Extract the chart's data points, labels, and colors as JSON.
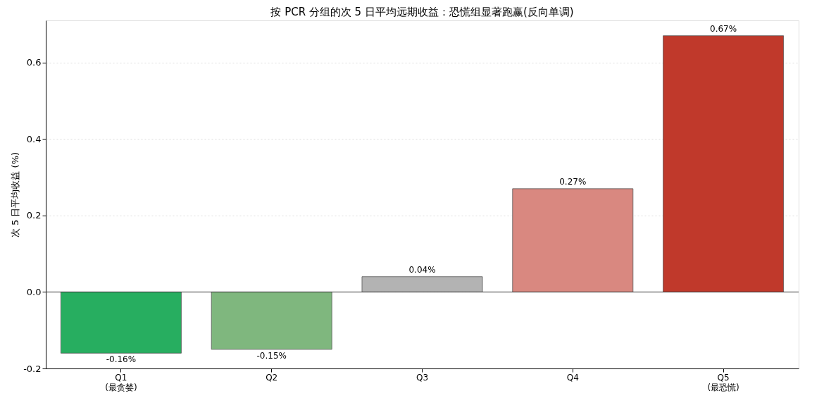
{
  "chart_data": {
    "type": "bar",
    "title": "按 PCR 分组的次 5 日平均远期收益：恐慌组显著跑赢(反向单调)",
    "ylabel": "次 5 日平均收益 (%)",
    "categories": [
      "Q1\n(最贪婪)",
      "Q2",
      "Q3",
      "Q4",
      "Q5\n(最恐慌)"
    ],
    "values": [
      -0.16,
      -0.15,
      0.04,
      0.27,
      0.67
    ],
    "colors": [
      "#27ae60",
      "#7fb77e",
      "#b3b3b3",
      "#d98880",
      "#c0392b"
    ],
    "value_labels": [
      "-0.16%",
      "-0.15%",
      "0.04%",
      "0.27%",
      "0.67%"
    ],
    "ylim": [
      -0.2,
      0.71
    ],
    "yticks": [
      -0.2,
      {
        "value": 0,
        "label": "0.0"
      },
      0.2,
      0.4,
      0.6
    ],
    "grid": "y",
    "ref_lines": [
      {
        "axis": "y",
        "value": 0,
        "color": "#333333"
      }
    ]
  }
}
